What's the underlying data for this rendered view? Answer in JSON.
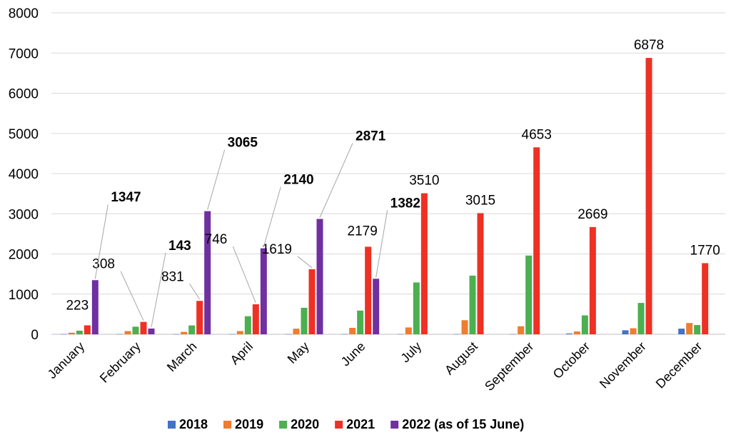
{
  "chart_data": {
    "type": "bar",
    "title": "",
    "xlabel": "",
    "ylabel": "",
    "ylim": [
      0,
      8000
    ],
    "yticks": [
      0,
      1000,
      2000,
      3000,
      4000,
      5000,
      6000,
      7000,
      8000
    ],
    "grid": true,
    "legend_position": "bottom",
    "categories": [
      "January",
      "February",
      "March",
      "April",
      "May",
      "June",
      "July",
      "August",
      "September",
      "October",
      "November",
      "December"
    ],
    "series": [
      {
        "name": "2018",
        "color": "#4472C4",
        "values": [
          5,
          5,
          5,
          5,
          5,
          5,
          5,
          5,
          5,
          20,
          100,
          140
        ]
      },
      {
        "name": "2019",
        "color": "#ED7D31",
        "values": [
          40,
          80,
          60,
          80,
          140,
          160,
          170,
          350,
          200,
          70,
          150,
          280
        ]
      },
      {
        "name": "2020",
        "color": "#4CAF50",
        "values": [
          90,
          190,
          220,
          450,
          660,
          590,
          1290,
          1460,
          1960,
          470,
          780,
          230
        ]
      },
      {
        "name": "2021",
        "color": "#EE3124",
        "values": [
          223,
          308,
          831,
          746,
          1619,
          2179,
          3510,
          3015,
          4653,
          2669,
          6878,
          1770
        ]
      },
      {
        "name": "2022 (as of 15 June)",
        "color": "#7030A0",
        "values": [
          1347,
          143,
          3065,
          2140,
          2871,
          1382,
          null,
          null,
          null,
          null,
          null,
          null
        ]
      }
    ],
    "data_labels": {
      "2021": [
        "223",
        "308",
        "831",
        "746",
        "1619",
        "2179",
        "3510",
        "3015",
        "4653",
        "2669",
        "6878",
        "1770"
      ],
      "2022 (as of 15 June)": [
        "1347",
        "143",
        "3065",
        "2140",
        "2871",
        "1382"
      ]
    }
  }
}
